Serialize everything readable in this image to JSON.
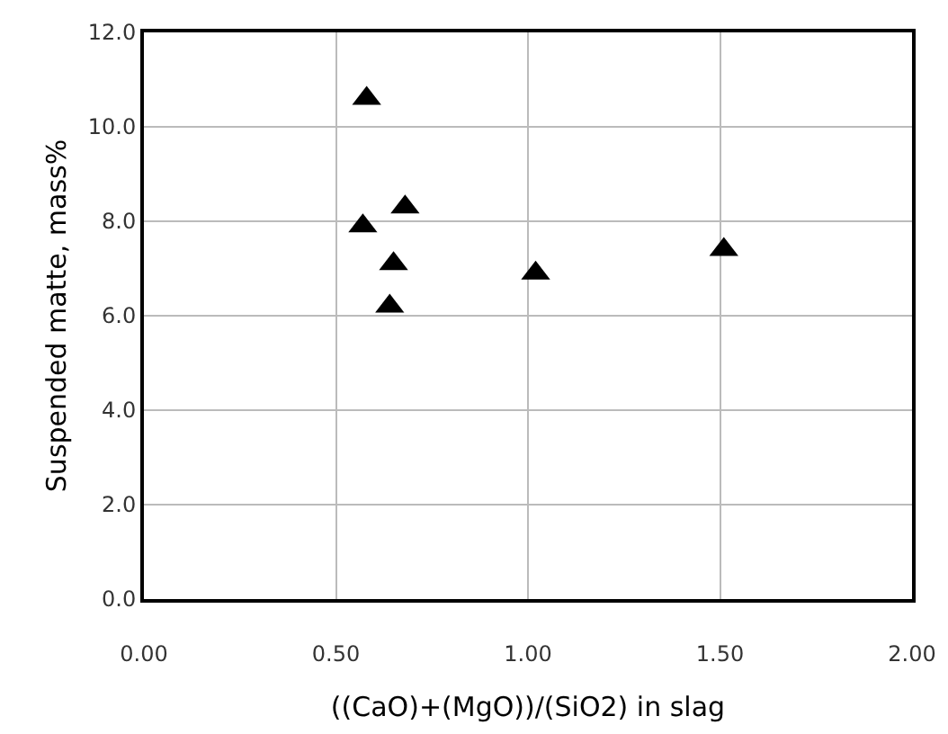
{
  "chart_data": {
    "type": "scatter",
    "xlabel": "((CaO)+(MgO))/(SiO2) in slag",
    "ylabel": "Suspended matte, mass%",
    "x": [
      0.58,
      0.57,
      0.68,
      0.65,
      0.64,
      1.02,
      1.51
    ],
    "series": [
      {
        "color": "#000000",
        "values": [
          10.6,
          7.9,
          8.3,
          7.1,
          6.2,
          6.9,
          7.4
        ]
      }
    ],
    "xlim": [
      0,
      2
    ],
    "xticks": [
      {
        "value": 0,
        "label": "0.00"
      },
      {
        "value": 0.5,
        "label": "0.50"
      },
      {
        "value": 1,
        "label": "1.00"
      },
      {
        "value": 1.5,
        "label": "1.50"
      },
      {
        "value": 2,
        "label": "2.00"
      }
    ],
    "ylim": [
      0,
      12
    ],
    "yticks": [
      {
        "value": 0,
        "label": "0.0"
      },
      {
        "value": 2,
        "label": "2.0"
      },
      {
        "value": 4,
        "label": "4.0"
      },
      {
        "value": 6,
        "label": "6.0"
      },
      {
        "value": 8,
        "label": "8.0"
      },
      {
        "value": 10,
        "label": "10.0"
      },
      {
        "value": 12,
        "label": "12.0"
      }
    ],
    "grid": true,
    "legend": false,
    "marker": "triangle"
  }
}
